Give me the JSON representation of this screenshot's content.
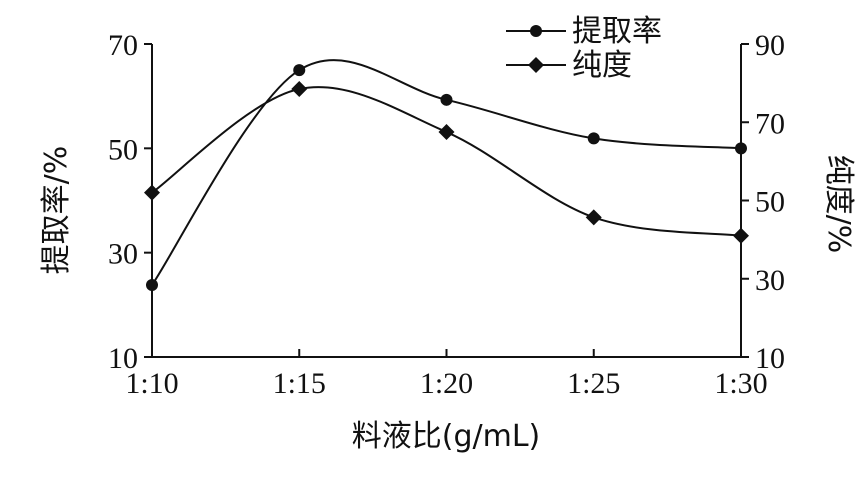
{
  "chart_data": {
    "type": "line",
    "categories": [
      "1:10",
      "1:15",
      "1:20",
      "1:25",
      "1:30"
    ],
    "xlabel": "料液比(g/mL)",
    "y_left": {
      "label": "提取率/%",
      "ticks": [
        "10",
        "30",
        "50",
        "70"
      ],
      "lim": [
        10,
        70
      ]
    },
    "y_right": {
      "label": "纯度/%",
      "ticks": [
        "10",
        "30",
        "50",
        "70",
        "90"
      ],
      "lim": [
        10,
        90
      ]
    },
    "legend_position": "top-right",
    "grid": false,
    "series": [
      {
        "name": "提取率",
        "axis": "left",
        "marker": "circle",
        "values": [
          23.8,
          65.0,
          59.3,
          51.9,
          50.0
        ]
      },
      {
        "name": "纯度",
        "axis": "right",
        "marker": "diamond",
        "values": [
          52.0,
          78.5,
          67.5,
          45.7,
          41.0
        ]
      }
    ]
  }
}
